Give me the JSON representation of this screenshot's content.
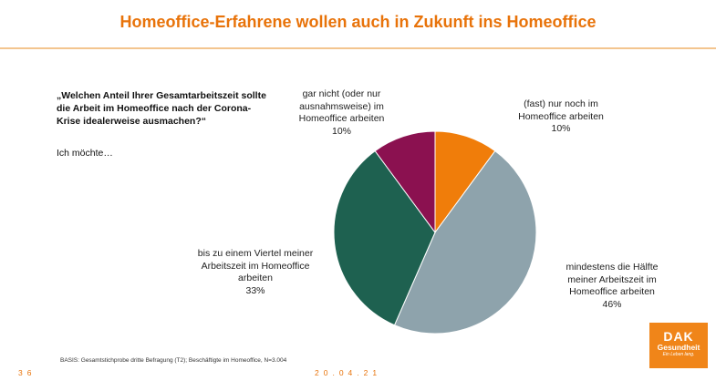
{
  "header": {
    "title": "Homeoffice-Erfahrene wollen auch in Zukunft ins Homeoffice"
  },
  "question": {
    "text": "„Welchen Anteil Ihrer Gesamtarbeitszeit sollte die Arbeit im Homeoffice nach der Corona-Krise idealerweise ausmachen?“",
    "prompt": "Ich möchte…"
  },
  "chart_data": {
    "type": "pie",
    "slices": [
      {
        "label": "(fast) nur noch im Homeoffice arbeiten",
        "value": 10,
        "value_label": "10%",
        "color": "#f07d0a"
      },
      {
        "label": "mindestens die Hälfte meiner Arbeitszeit im Homeoffice arbeiten",
        "value": 46,
        "value_label": "46%",
        "color": "#8ea3ac"
      },
      {
        "label": "bis zu einem Viertel meiner Arbeitszeit im Homeoffice arbeiten",
        "value": 33,
        "value_label": "33%",
        "color": "#1e6150"
      },
      {
        "label": "gar nicht (oder nur ausnahmsweise) im Homeoffice arbeiten",
        "value": 10,
        "value_label": "10%",
        "color": "#8b1150"
      }
    ],
    "start": "12 o'clock",
    "direction": "clockwise"
  },
  "labels": {
    "fast_nur": {
      "lines": [
        "(fast) nur noch im",
        "Homeoffice arbeiten"
      ],
      "pct": "10%"
    },
    "mindestens": {
      "lines": [
        "mindestens die Hälfte",
        "meiner Arbeitszeit im",
        "Homeoffice arbeiten"
      ],
      "pct": "46%"
    },
    "viertel": {
      "lines": [
        "bis zu einem Viertel meiner",
        "Arbeitszeit im Homeoffice",
        "arbeiten"
      ],
      "pct": "33%"
    },
    "gar_nicht": {
      "lines": [
        "gar nicht (oder nur",
        "ausnahmsweise) im",
        "Homeoffice arbeiten"
      ],
      "pct": "10%"
    }
  },
  "footer": {
    "basis": "BASIS: Gesamtstichprobe dritte Befragung (T2); Beschäftigte im Homeoffice, N=3.004",
    "page": "36",
    "date": "20.04.21"
  },
  "logo": {
    "main": "DAK",
    "sub": "Gesundheit",
    "tag": "Ein Leben lang."
  }
}
